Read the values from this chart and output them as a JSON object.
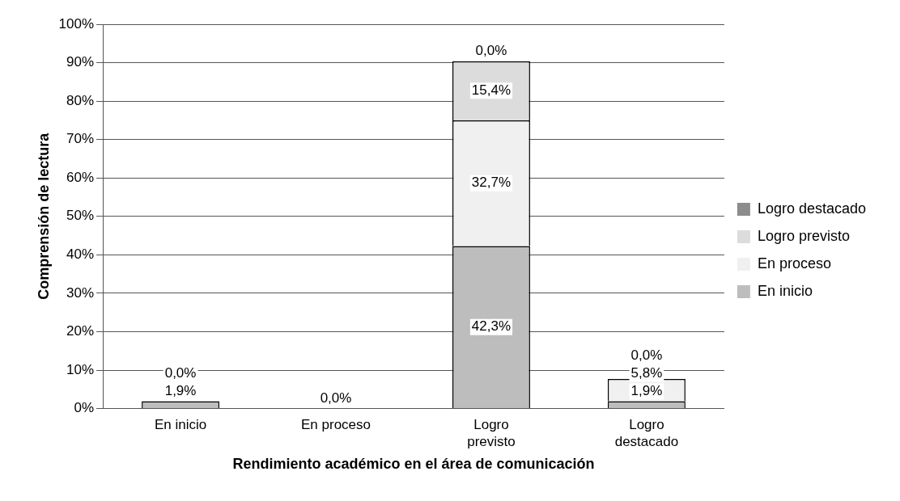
{
  "chart_data": {
    "type": "bar",
    "stacked": true,
    "xlabel": "Rendimiento académico en el área de comunicación",
    "ylabel": "Comprensión de lectura",
    "categories": [
      "En inicio",
      "En proceso",
      "Logro previsto",
      "Logro destacado"
    ],
    "series": [
      {
        "name": "En inicio",
        "color": "#bdbdbd",
        "values": [
          1.9,
          0,
          42.3,
          1.9
        ],
        "value_labels": [
          "1,9%",
          "0,0%",
          "42,3%",
          "1,9%"
        ]
      },
      {
        "name": "En proceso",
        "color": "#f0f0f0",
        "values": [
          0,
          0,
          32.7,
          5.8
        ],
        "value_labels": [
          "0,0%",
          null,
          "32,7%",
          "5,8%"
        ]
      },
      {
        "name": "Logro previsto",
        "color": "#dcdcdc",
        "values": [
          0,
          0,
          15.4,
          0
        ],
        "value_labels": [
          null,
          null,
          "15,4%",
          null
        ]
      },
      {
        "name": "Logro destacado",
        "color": "#8c8c8c",
        "values": [
          0,
          0,
          0,
          0
        ],
        "value_labels": [
          null,
          null,
          "0,0%",
          "0,0%"
        ]
      }
    ],
    "ylim": [
      0,
      100
    ],
    "yticks": [
      {
        "value": 0,
        "label": "0%"
      },
      {
        "value": 10,
        "label": "10%"
      },
      {
        "value": 20,
        "label": "20%"
      },
      {
        "value": 30,
        "label": "30%"
      },
      {
        "value": 40,
        "label": "40%"
      },
      {
        "value": 50,
        "label": "50%"
      },
      {
        "value": 60,
        "label": "60%"
      },
      {
        "value": 70,
        "label": "70%"
      },
      {
        "value": 80,
        "label": "80%"
      },
      {
        "value": 90,
        "label": "90%"
      },
      {
        "value": 100,
        "label": "100%"
      }
    ],
    "grid": "y",
    "legend": "right"
  }
}
